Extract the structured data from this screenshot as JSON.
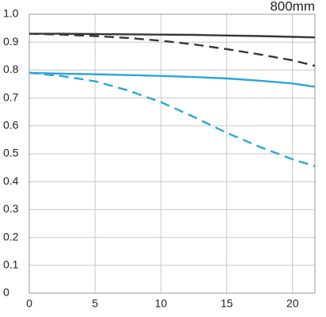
{
  "chart_data": {
    "type": "line",
    "title": "800mm",
    "x": [
      0,
      2.5,
      5,
      7.5,
      10,
      12.5,
      15,
      17.5,
      20,
      21.7
    ],
    "series": [
      {
        "color": "#3d3536",
        "line_style": "solid",
        "values": [
          0.93,
          0.93,
          0.929,
          0.928,
          0.927,
          0.926,
          0.924,
          0.922,
          0.919,
          0.917
        ]
      },
      {
        "color": "#3d3536",
        "line_style": "dashed",
        "values": [
          0.93,
          0.927,
          0.922,
          0.915,
          0.905,
          0.892,
          0.875,
          0.856,
          0.835,
          0.815
        ]
      },
      {
        "color": "#2aa5de",
        "line_style": "solid",
        "values": [
          0.79,
          0.787,
          0.785,
          0.782,
          0.779,
          0.775,
          0.77,
          0.762,
          0.752,
          0.74
        ]
      },
      {
        "color": "#2aa5de",
        "line_style": "dashed",
        "values": [
          0.79,
          0.778,
          0.76,
          0.727,
          0.685,
          0.632,
          0.575,
          0.525,
          0.48,
          0.455
        ]
      }
    ],
    "xlim": [
      0,
      21.7
    ],
    "ylim": [
      0,
      1
    ],
    "xticks": [
      0,
      5,
      10,
      15,
      20
    ],
    "yticks": [
      0,
      0.1,
      0.2,
      0.3,
      0.4,
      0.5,
      0.6,
      0.7,
      0.8,
      0.9,
      {
        "value": 1,
        "label": "1.0"
      }
    ],
    "grid": true
  }
}
